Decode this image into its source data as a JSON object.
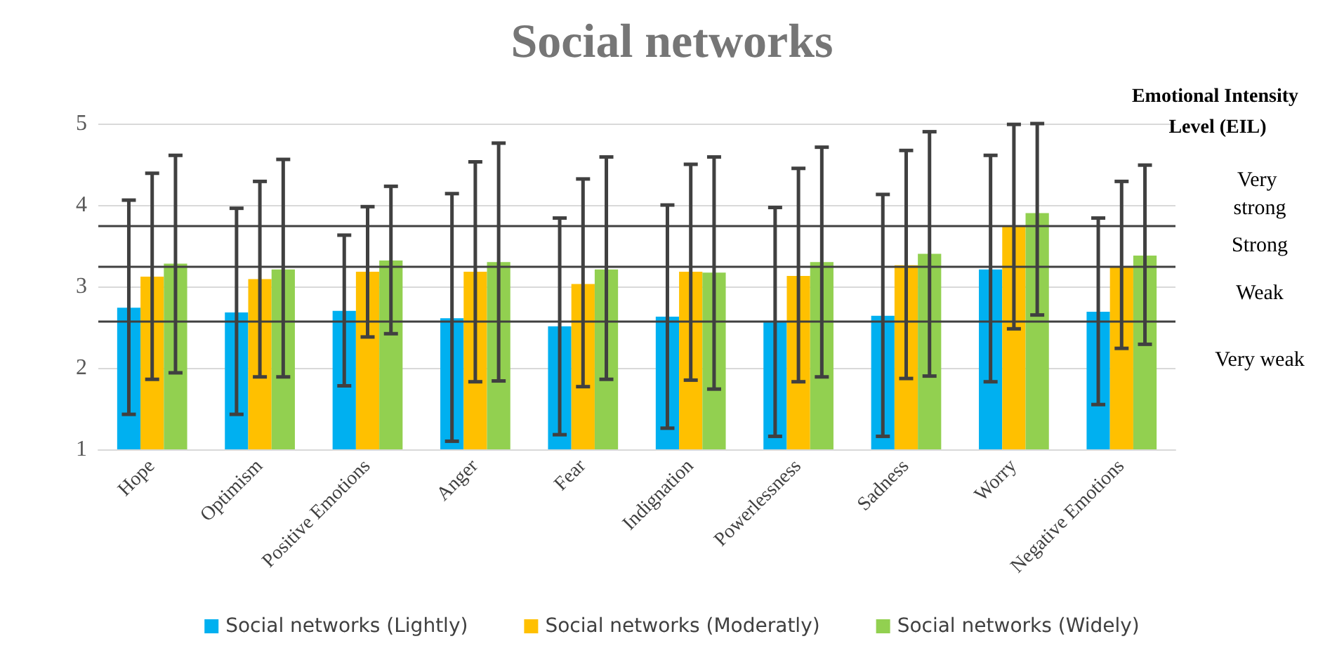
{
  "chart_data": {
    "type": "bar",
    "title": "Social networks",
    "categories": [
      "Hope",
      "Optimism",
      "Positive Emotions",
      "Anger",
      "Fear",
      "Indignation",
      "Powerlessness",
      "Sadness",
      "Worry",
      "Negative Emotions"
    ],
    "series": [
      {
        "name": "Social networks (Lightly)",
        "color": "#00b0f0",
        "values": [
          2.74,
          2.68,
          2.7,
          2.61,
          2.51,
          2.63,
          2.56,
          2.64,
          3.21,
          2.69
        ],
        "errors": [
          [
            1.43,
            4.06
          ],
          [
            1.43,
            3.96
          ],
          [
            1.78,
            3.63
          ],
          [
            1.1,
            4.14
          ],
          [
            1.18,
            3.84
          ],
          [
            1.26,
            4.0
          ],
          [
            1.16,
            3.97
          ],
          [
            1.16,
            4.13
          ],
          [
            1.83,
            4.61
          ],
          [
            1.55,
            3.84
          ]
        ]
      },
      {
        "name": "Social networks (Moderatly)",
        "color": "#ffc000",
        "values": [
          3.12,
          3.09,
          3.18,
          3.18,
          3.03,
          3.18,
          3.13,
          3.26,
          3.74,
          3.25
        ],
        "errors": [
          [
            1.86,
            4.39
          ],
          [
            1.89,
            4.29
          ],
          [
            2.38,
            3.98
          ],
          [
            1.83,
            4.53
          ],
          [
            1.77,
            4.32
          ],
          [
            1.85,
            4.5
          ],
          [
            1.83,
            4.45
          ],
          [
            1.87,
            4.67
          ],
          [
            2.48,
            4.99
          ],
          [
            2.24,
            4.29
          ]
        ]
      },
      {
        "name": "Social networks (Widely)",
        "color": "#92d050",
        "values": [
          3.28,
          3.21,
          3.32,
          3.3,
          3.21,
          3.17,
          3.3,
          3.4,
          3.9,
          3.38
        ],
        "errors": [
          [
            1.94,
            4.61
          ],
          [
            1.89,
            4.56
          ],
          [
            2.42,
            4.23
          ],
          [
            1.84,
            4.76
          ],
          [
            1.86,
            4.59
          ],
          [
            1.74,
            4.59
          ],
          [
            1.89,
            4.71
          ],
          [
            1.9,
            4.9
          ],
          [
            2.65,
            5.0
          ],
          [
            2.29,
            4.49
          ]
        ]
      }
    ],
    "ylim": [
      1,
      5
    ],
    "yticks": [
      1,
      2,
      3,
      4,
      5
    ],
    "grid": "y",
    "legend": "bottom",
    "ref_lines": [
      {
        "axis": "y",
        "value": 3.75,
        "color": "#404040"
      },
      {
        "axis": "y",
        "value": 3.25,
        "color": "#404040"
      },
      {
        "axis": "y",
        "value": 2.58,
        "color": "#404040"
      }
    ],
    "annotations": [
      "Emotional Intensity Level (EIL)",
      "Very strong",
      "Strong",
      "Weak",
      "Very weak"
    ]
  }
}
